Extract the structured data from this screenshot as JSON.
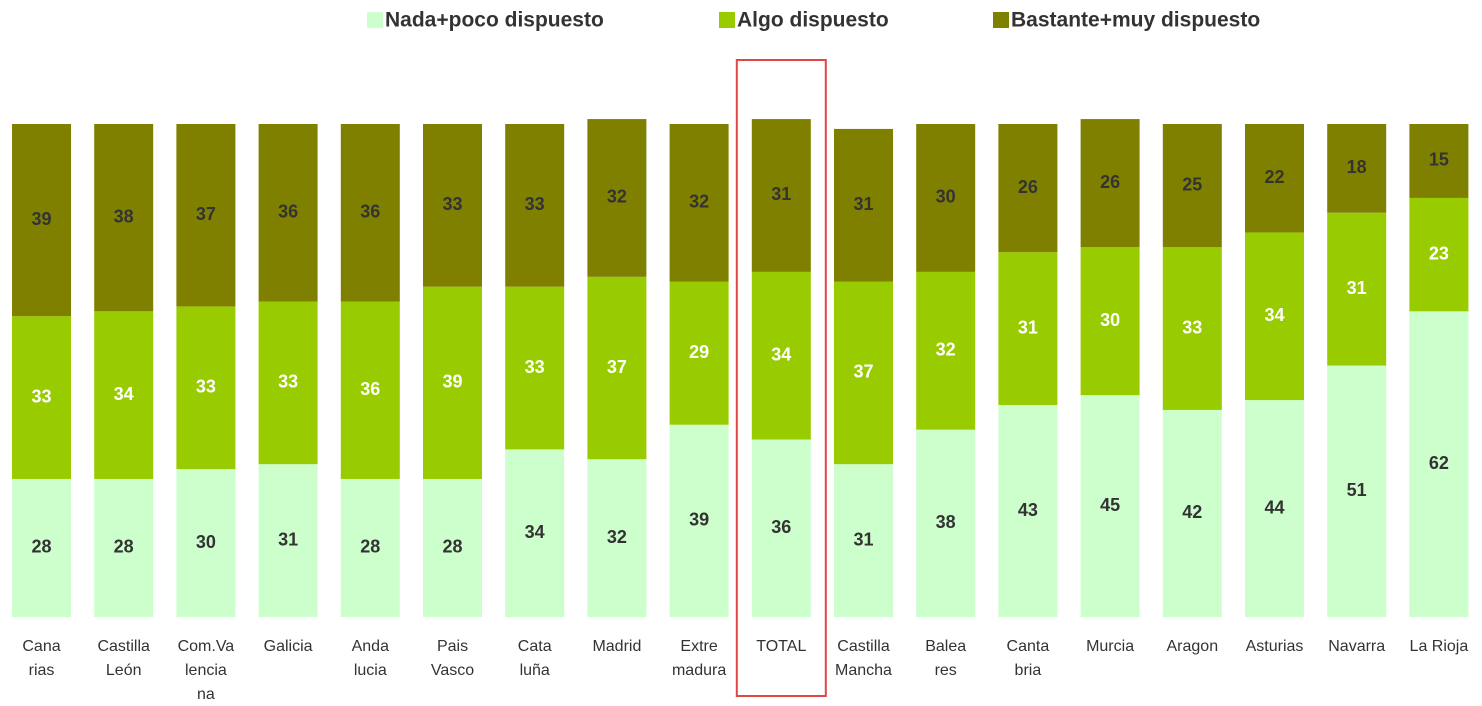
{
  "chart_data": {
    "type": "stacked_bar",
    "categories": [
      "Cana\nrias",
      "Castilla\nLeón",
      "Com.Va\nlencia\nna",
      "Galicia",
      "Anda\nlucia",
      "Pais\nVasco",
      "Cata\nluña",
      "Madrid",
      "Extre\nmadura",
      "TOTAL",
      "Castilla\nMancha",
      "Balea\nres",
      "Canta\nbria",
      "Murcia",
      "Aragon",
      "Asturias",
      "Navarra",
      "La Rioja"
    ],
    "series": [
      {
        "name": "Nada+poco dispuesto",
        "color": "#ccffcc",
        "label_color": "#333333",
        "values": [
          28,
          28,
          30,
          31,
          28,
          28,
          34,
          32,
          39,
          36,
          31,
          38,
          43,
          45,
          42,
          44,
          51,
          62
        ]
      },
      {
        "name": "Algo dispuesto",
        "color": "#99cc00",
        "label_color": "#ffffff",
        "values": [
          33,
          34,
          33,
          33,
          36,
          39,
          33,
          37,
          29,
          34,
          37,
          32,
          31,
          30,
          33,
          34,
          31,
          23
        ]
      },
      {
        "name": "Bastante+muy dispuesto",
        "color": "#808000",
        "label_color": "#333333",
        "values": [
          39,
          38,
          37,
          36,
          36,
          33,
          33,
          32,
          32,
          31,
          31,
          30,
          26,
          26,
          25,
          22,
          18,
          15
        ]
      }
    ],
    "ylim": [
      0,
      100
    ],
    "legend": "top",
    "highlight": {
      "index": 9,
      "color": "#e04848"
    }
  }
}
